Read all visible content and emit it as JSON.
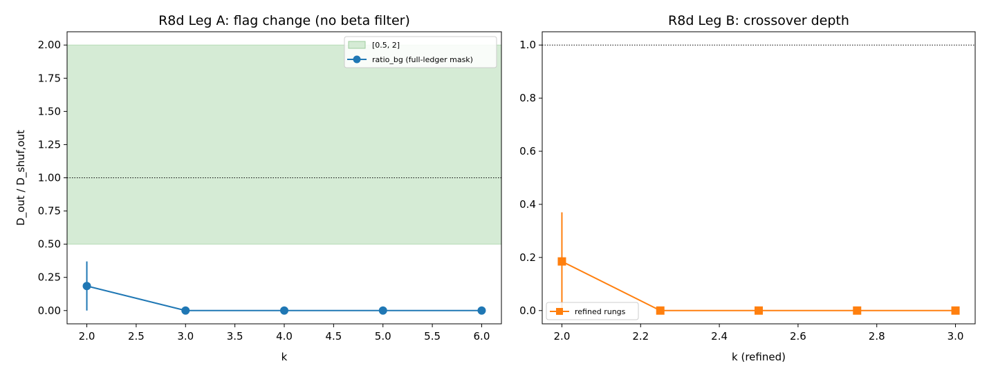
{
  "chart_data": [
    {
      "type": "line",
      "title": "R8d Leg A: flag change (no beta filter)",
      "xlabel": "k",
      "ylabel": "D_out / D_shuf,out",
      "xlim": [
        1.8,
        6.2
      ],
      "ylim": [
        -0.1,
        2.1
      ],
      "xticks": [
        2.0,
        2.5,
        3.0,
        3.5,
        4.0,
        4.5,
        5.0,
        5.5,
        6.0
      ],
      "xtick_labels": [
        "2.0",
        "2.5",
        "3.0",
        "3.5",
        "4.0",
        "4.5",
        "5.0",
        "5.5",
        "6.0"
      ],
      "yticks": [
        0.0,
        0.25,
        0.5,
        0.75,
        1.0,
        1.25,
        1.5,
        1.75,
        2.0
      ],
      "ytick_labels": [
        "0.00",
        "0.25",
        "0.50",
        "0.75",
        "1.00",
        "1.25",
        "1.50",
        "1.75",
        "2.00"
      ],
      "band": {
        "y0": 0.5,
        "y1": 2.0,
        "label": "[0.5, 2]",
        "color": "#d5ebd5"
      },
      "hline": {
        "y": 1.0
      },
      "legend_loc": "upper right",
      "series": [
        {
          "name": "ratio_bg (full-ledger mask)",
          "color": "#1f77b4",
          "marker": "circle",
          "x": [
            2,
            3,
            4,
            5,
            6
          ],
          "y": [
            0.185,
            0.0,
            0.0,
            0.0,
            0.0
          ],
          "yerr": [
            0.185,
            0.0,
            0.0,
            0.0,
            0.0
          ]
        }
      ]
    },
    {
      "type": "line",
      "title": "R8d Leg B: crossover depth",
      "xlabel": "k (refined)",
      "ylabel": "",
      "xlim": [
        1.95,
        3.05
      ],
      "ylim": [
        -0.05,
        1.05
      ],
      "xticks": [
        2.0,
        2.2,
        2.4,
        2.6,
        2.8,
        3.0
      ],
      "xtick_labels": [
        "2.0",
        "2.2",
        "2.4",
        "2.6",
        "2.8",
        "3.0"
      ],
      "yticks": [
        0.0,
        0.2,
        0.4,
        0.6,
        0.8,
        1.0
      ],
      "ytick_labels": [
        "0.0",
        "0.2",
        "0.4",
        "0.6",
        "0.8",
        "1.0"
      ],
      "hline": {
        "y": 1.0
      },
      "legend_loc": "lower left",
      "series": [
        {
          "name": "refined rungs",
          "color": "#ff7f0e",
          "marker": "square",
          "x": [
            2.0,
            2.25,
            2.5,
            2.75,
            3.0
          ],
          "y": [
            0.185,
            0.0,
            0.0,
            0.0,
            0.0
          ],
          "yerr": [
            0.185,
            0.0,
            0.0,
            0.0,
            0.0
          ]
        }
      ]
    }
  ]
}
